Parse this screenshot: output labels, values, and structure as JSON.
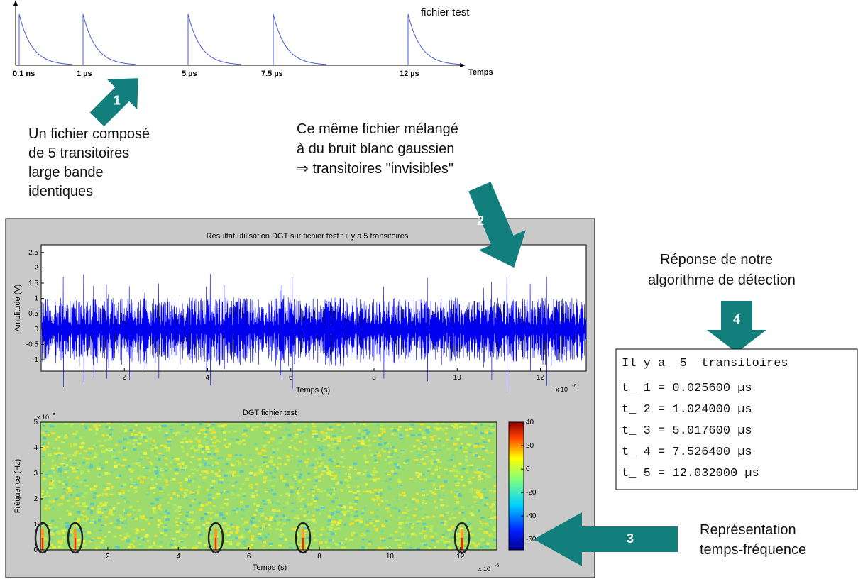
{
  "schematic": {
    "label": "fichier test",
    "axis_label": "Temps",
    "ticks": [
      "0.1 ns",
      "1 µs",
      "5 µs",
      "7.5 µs",
      "12 µs"
    ]
  },
  "steps": [
    {
      "number": "1",
      "text": [
        "Un fichier composé",
        "de 5 transitoires",
        "large bande",
        "identiques"
      ]
    },
    {
      "number": "2",
      "text": [
        "Ce même fichier mélangé",
        "à du bruit blanc gaussien",
        "⇒ transitoires \"invisibles\""
      ]
    },
    {
      "number": "3",
      "text": [
        "Représentation",
        "temps-fréquence"
      ]
    },
    {
      "number": "4",
      "text": [
        "Réponse de notre",
        "algorithme de détection"
      ]
    }
  ],
  "signal_plot": {
    "title": "Résultat utilisation DGT sur fichier test : il y a 5 transitoires",
    "ylabel": "Amplitude (V)",
    "xlabel": "Temps (s)",
    "x_exponent": "x 10",
    "x_exponent_power": "-6",
    "xlim": [
      0,
      13.1
    ],
    "xticks": [
      2,
      4,
      6,
      8,
      10,
      12
    ],
    "ylim": [
      -1.37,
      2.75
    ],
    "yticks": [
      -1,
      -0.5,
      0,
      0.5,
      1,
      1.5,
      2,
      2.5
    ]
  },
  "tf_plot": {
    "title": "DGT fichier test",
    "ylabel": "Fréquence (Hz)",
    "xlabel": "Temps (s)",
    "x_exponent": "x 10",
    "x_exponent_power": "-6",
    "y_exponent": "x 10",
    "y_exponent_power": "8",
    "xlim": [
      0.09,
      13.03
    ],
    "xticks": [
      2,
      4,
      6,
      8,
      10,
      12
    ],
    "ylim": [
      0,
      5
    ],
    "yticks": [
      0,
      1,
      2,
      3,
      4,
      5
    ],
    "colorbar": {
      "lim": [
        -69,
        40
      ],
      "ticks": [
        40,
        20,
        0,
        -20,
        -40,
        -60
      ]
    }
  },
  "detection": {
    "header": "Il y a  5  transitoires",
    "results": [
      "t_ 1 = 0.025600 µs",
      "t_ 2 = 1.024000 µs",
      "t_ 3 = 5.017600 µs",
      "t_ 4 = 7.526400 µs",
      "t_ 5 = 12.032000 µs"
    ]
  }
}
